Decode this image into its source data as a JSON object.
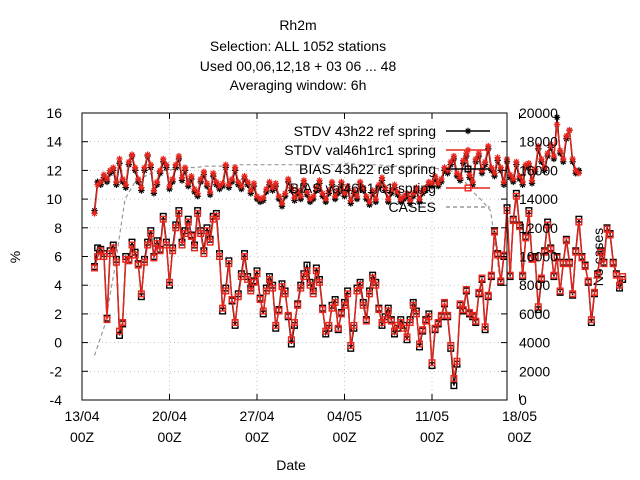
{
  "chart_data": {
    "type": "line",
    "title_lines": [
      "Rh2m",
      "Selection: ALL    1052 stations",
      "Used  00,06,12,18  + 03 06 ... 48",
      "Averaging window:  6h"
    ],
    "xlabel": "Date",
    "ylabel": "%",
    "y2label": "No cases",
    "xlim": [
      0,
      34
    ],
    "ylim": [
      -4,
      16
    ],
    "y2lim": [
      0,
      20000
    ],
    "grid": true,
    "legend_position": "top-right",
    "x_ticks": [
      {
        "x": 0,
        "line1": "13/04",
        "line2": "00Z"
      },
      {
        "x": 7,
        "line1": "20/04",
        "line2": "00Z"
      },
      {
        "x": 14,
        "line1": "27/04",
        "line2": "00Z"
      },
      {
        "x": 21,
        "line1": "04/05",
        "line2": "00Z"
      },
      {
        "x": 28,
        "line1": "11/05",
        "line2": "00Z"
      },
      {
        "x": 35,
        "line1": "18/05",
        "line2": "00Z"
      }
    ],
    "y_ticks": [
      "-4",
      "-2",
      "0",
      "2",
      "4",
      "6",
      "8",
      "10",
      "12",
      "14",
      "16"
    ],
    "y2_ticks": [
      "0",
      "2000",
      "4000",
      "6000",
      "8000",
      "10000",
      "12000",
      "14000",
      "16000",
      "18000",
      "20000"
    ],
    "x_step_days": 0.25,
    "x_start_day": 1.0,
    "series": [
      {
        "name": "STDV 43h22 ref spring",
        "axis": "y",
        "color": "#000000",
        "marker": "star",
        "dash": "solid",
        "values": [
          9.2,
          11.2,
          11.0,
          11.5,
          11.2,
          11.8,
          12.0,
          11.0,
          12.5,
          11.2,
          10.8,
          12.4,
          13.0,
          12.0,
          11.2,
          10.6,
          12.0,
          13.0,
          12.2,
          10.4,
          11.0,
          11.8,
          12.6,
          12.2,
          10.7,
          11.2,
          12.2,
          12.8,
          11.3,
          12.0,
          10.9,
          11.4,
          10.5,
          10.2,
          11.2,
          11.7,
          10.9,
          10.3,
          11.6,
          11.0,
          10.7,
          10.9,
          12.2,
          10.8,
          11.2,
          12.0,
          11.0,
          10.7,
          11.4,
          11.0,
          10.4,
          10.9,
          10.0,
          9.8,
          9.9,
          10.5,
          11.0,
          10.6,
          10.9,
          10.0,
          9.5,
          10.2,
          11.2,
          10.6,
          9.9,
          10.4,
          10.0,
          11.1,
          10.3,
          9.8,
          10.0,
          10.6,
          11.1,
          10.2,
          9.8,
          10.4,
          11.0,
          10.0,
          10.4,
          11.0,
          10.2,
          10.7,
          9.7,
          10.4,
          10.0,
          11.0,
          10.6,
          10.0,
          9.6,
          10.4,
          9.8,
          10.8,
          11.3,
          10.6,
          9.8,
          10.4,
          10.8,
          10.3,
          9.8,
          10.0,
          10.2,
          9.7,
          10.2,
          10.6,
          9.8,
          10.4,
          10.6,
          11.0,
          10.9,
          11.4,
          10.9,
          11.2,
          12.0,
          11.8,
          12.4,
          12.8,
          11.6,
          11.3,
          12.5,
          13.0,
          11.5,
          11.0,
          12.6,
          13.0,
          11.8,
          12.4,
          13.5,
          12.0,
          11.6,
          12.7,
          12.0,
          11.0,
          12.6,
          11.5,
          11.2,
          12.4,
          11.4,
          11.0,
          12.2,
          12.3,
          11.1,
          11.9,
          13.5,
          12.6,
          12.0,
          13.0,
          13.6,
          12.8,
          15.7,
          13.2,
          12.6,
          14.2,
          14.8,
          12.6,
          11.8,
          12.0
        ]
      },
      {
        "name": "STDV val46h1rc1 spring",
        "axis": "y",
        "color": "#e8251c",
        "marker": "star",
        "dash": "solid",
        "values": [
          9.0,
          11.0,
          11.2,
          11.7,
          11.4,
          12.0,
          12.2,
          11.2,
          12.8,
          11.4,
          11.0,
          12.6,
          13.1,
          12.2,
          11.4,
          10.8,
          12.2,
          13.1,
          12.4,
          10.6,
          11.2,
          12.0,
          12.8,
          12.4,
          10.9,
          11.4,
          12.4,
          13.0,
          11.5,
          12.2,
          11.1,
          11.6,
          10.7,
          10.4,
          11.4,
          11.9,
          11.1,
          10.5,
          11.8,
          11.2,
          10.9,
          11.1,
          12.4,
          11.0,
          11.4,
          12.2,
          11.2,
          10.9,
          11.6,
          11.2,
          10.6,
          11.1,
          10.2,
          10.0,
          10.1,
          10.7,
          11.2,
          10.8,
          11.1,
          10.2,
          9.7,
          10.4,
          11.4,
          10.8,
          10.1,
          10.6,
          10.2,
          11.3,
          10.5,
          10.0,
          10.2,
          10.8,
          11.3,
          10.4,
          10.0,
          10.6,
          11.2,
          10.2,
          10.6,
          11.2,
          10.4,
          10.9,
          9.9,
          10.6,
          10.2,
          11.2,
          10.8,
          10.2,
          9.8,
          10.6,
          10.0,
          11.0,
          11.5,
          10.8,
          10.0,
          10.6,
          11.0,
          10.5,
          10.0,
          10.2,
          10.4,
          9.9,
          10.4,
          10.8,
          10.0,
          10.6,
          10.8,
          11.2,
          11.1,
          11.6,
          11.1,
          11.4,
          12.2,
          12.0,
          12.6,
          13.0,
          11.8,
          11.5,
          12.7,
          13.2,
          11.7,
          11.2,
          12.8,
          13.2,
          12.0,
          12.6,
          13.7,
          12.2,
          11.8,
          12.9,
          12.2,
          11.2,
          12.8,
          11.7,
          11.4,
          12.6,
          11.6,
          11.2,
          12.4,
          12.5,
          11.3,
          12.1,
          13.7,
          12.8,
          12.2,
          13.2,
          13.8,
          13.0,
          15.2,
          13.4,
          12.8,
          14.4,
          14.8,
          12.8,
          12.0,
          11.8
        ]
      },
      {
        "name": "BIAS 43h22 ref spring",
        "axis": "y",
        "color": "#000000",
        "marker": "square",
        "dash": "solid",
        "values": [
          5.3,
          6.6,
          6.5,
          6.2,
          1.7,
          6.4,
          6.8,
          5.8,
          0.5,
          1.3,
          6.0,
          5.8,
          7.0,
          6.3,
          5.5,
          3.2,
          5.8,
          7.0,
          7.8,
          6.0,
          7.1,
          6.5,
          8.8,
          7.0,
          4.0,
          6.6,
          8.2,
          9.2,
          7.0,
          7.8,
          8.6,
          7.5,
          6.8,
          9.2,
          7.8,
          6.4,
          8.0,
          7.2,
          8.8,
          9.0,
          6.2,
          2.2,
          3.8,
          5.7,
          2.9,
          1.2,
          3.4,
          4.8,
          6.2,
          4.6,
          3.8,
          4.3,
          5.0,
          3.1,
          2.0,
          3.8,
          4.6,
          4.0,
          1.0,
          2.3,
          4.1,
          3.6,
          1.8,
          -0.1,
          1.2,
          2.7,
          4.0,
          4.8,
          5.4,
          4.2,
          3.6,
          5.2,
          4.4,
          2.4,
          0.6,
          1.0,
          2.6,
          3.0,
          0.9,
          2.1,
          2.8,
          3.6,
          -0.4,
          1.0,
          3.8,
          4.2,
          2.8,
          1.6,
          3.6,
          4.7,
          4.2,
          2.4,
          1.2,
          1.8,
          2.4,
          1.6,
          0.6,
          1.0,
          1.6,
          1.2,
          0.2,
          1.6,
          2.8,
          2.2,
          -0.3,
          0.8,
          1.6,
          2.0,
          -1.6,
          0.9,
          1.3,
          1.8,
          2.7,
          1.8,
          -0.4,
          -3.0,
          -1.5,
          2.6,
          2.2,
          3.6,
          2.0,
          1.8,
          1.4,
          3.4,
          4.4,
          0.9,
          3.2,
          4.6,
          7.8,
          6.2,
          4.2,
          6.0,
          9.4,
          4.6,
          8.6,
          10.4,
          8.2,
          4.6,
          7.4,
          9.2,
          5.9,
          6.0,
          2.3,
          4.4,
          6.4,
          8.4,
          6.6,
          4.6,
          6.0,
          3.5,
          5.6,
          7.2,
          5.6,
          3.3,
          6.4,
          8.6,
          6.0,
          5.4,
          4.2,
          1.4,
          3.4,
          4.8,
          6.4,
          5.6,
          8.0,
          7.6,
          5.6,
          4.8,
          3.8,
          4.4
        ]
      },
      {
        "name": "BIAS val46h1rc1 spring",
        "axis": "y",
        "color": "#e8251c",
        "marker": "square",
        "dash": "solid",
        "values": [
          5.2,
          6.0,
          6.4,
          6.0,
          1.6,
          6.2,
          6.6,
          5.6,
          0.8,
          1.4,
          5.8,
          5.7,
          6.8,
          6.1,
          5.4,
          3.4,
          5.6,
          6.8,
          7.6,
          5.9,
          6.9,
          6.4,
          8.6,
          6.8,
          4.2,
          6.4,
          8.0,
          9.0,
          6.8,
          7.6,
          8.4,
          7.4,
          6.6,
          9.0,
          7.6,
          6.2,
          7.8,
          7.0,
          8.6,
          8.8,
          6.0,
          2.4,
          3.6,
          5.5,
          3.0,
          1.4,
          3.2,
          4.6,
          6.0,
          4.4,
          3.6,
          4.2,
          4.8,
          3.0,
          2.2,
          3.6,
          4.4,
          3.8,
          1.2,
          2.2,
          3.9,
          3.4,
          1.9,
          0.2,
          1.4,
          2.6,
          3.8,
          4.6,
          5.0,
          4.0,
          3.4,
          5.0,
          4.2,
          2.3,
          0.8,
          1.2,
          2.4,
          2.8,
          1.0,
          2.0,
          2.6,
          3.4,
          -0.2,
          1.2,
          3.6,
          4.0,
          2.6,
          1.5,
          3.4,
          4.5,
          4.0,
          2.3,
          1.4,
          1.6,
          2.2,
          1.5,
          0.8,
          1.2,
          1.4,
          1.0,
          0.4,
          1.4,
          2.6,
          2.0,
          -0.1,
          0.9,
          1.5,
          1.8,
          -1.4,
          1.0,
          1.4,
          1.9,
          2.8,
          1.9,
          -0.2,
          -2.5,
          -1.3,
          2.7,
          2.3,
          3.7,
          2.1,
          1.9,
          1.5,
          3.5,
          4.5,
          1.1,
          3.3,
          4.7,
          7.7,
          6.1,
          4.3,
          6.1,
          9.2,
          4.7,
          8.5,
          10.2,
          8.1,
          4.7,
          7.3,
          9.0,
          5.8,
          5.9,
          2.5,
          4.5,
          6.3,
          8.2,
          6.5,
          4.7,
          5.9,
          3.6,
          5.5,
          7.1,
          5.5,
          3.4,
          6.3,
          8.4,
          5.9,
          5.3,
          4.3,
          1.6,
          3.5,
          4.7,
          6.3,
          5.5,
          7.9,
          7.5,
          5.5,
          4.7,
          4.0,
          4.6
        ]
      },
      {
        "name": "CASES",
        "axis": "y2",
        "color": "#999999",
        "marker": "none",
        "dash": "dashed",
        "values": [
          3100,
          5200,
          9200,
          14000,
          15200,
          15600,
          15900,
          16000,
          16100,
          16200,
          16200,
          16300,
          16300,
          16300,
          16400,
          16400,
          16400,
          16400,
          16400,
          16400,
          16400,
          16400,
          16400,
          16400,
          16400,
          16500,
          16400,
          16400,
          16400,
          16300,
          16300,
          16300,
          16300,
          16200,
          16100,
          16000,
          15700,
          14700,
          14000,
          13200,
          8000
        ]
      }
    ]
  }
}
